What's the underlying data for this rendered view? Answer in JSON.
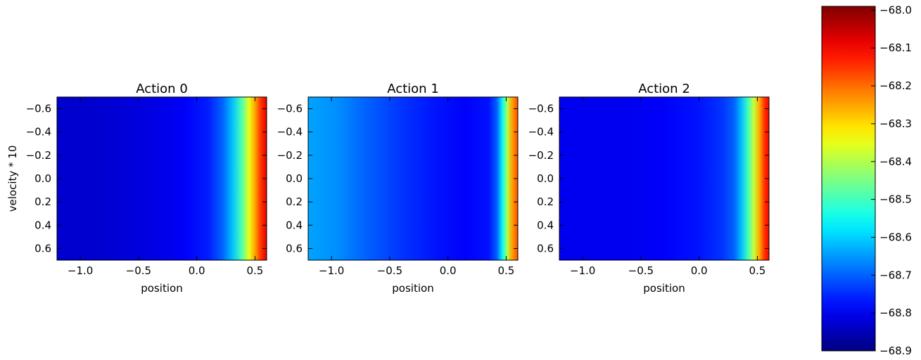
{
  "chart_data": {
    "type": "heatmap",
    "colormap": "jet",
    "ylabel": "velocity * 10",
    "colorbar": {
      "range": [
        -68.9,
        -67.99
      ],
      "ticks": [
        "−68.0",
        "−68.1",
        "−68.2",
        "−68.3",
        "−68.4",
        "−68.5",
        "−68.6",
        "−68.7",
        "−68.8",
        "−68.9"
      ],
      "tick_values": [
        -68.0,
        -68.1,
        -68.2,
        -68.3,
        -68.4,
        -68.5,
        -68.6,
        -68.7,
        -68.8,
        -68.9
      ]
    },
    "panels": [
      {
        "title": "Action 0",
        "xlabel": "position",
        "xlim": [
          -1.2,
          0.6
        ],
        "ylim": [
          -0.7,
          0.7
        ],
        "y_inverted": true,
        "xticks": [
          "−1.0",
          "−0.5",
          "0.0",
          "0.5"
        ],
        "xtick_values": [
          -1.0,
          -0.5,
          0.0,
          0.5
        ],
        "yticks": [
          "−0.6",
          "−0.4",
          "−0.2",
          "0.0",
          "0.2",
          "0.4",
          "0.6"
        ],
        "ytick_values": [
          -0.6,
          -0.4,
          -0.2,
          0.0,
          0.2,
          0.4,
          0.6
        ],
        "profile": {
          "position": [
            -1.2,
            -0.9,
            -0.6,
            -0.35,
            -0.1,
            0.1,
            0.22,
            0.3,
            0.38,
            0.45,
            0.5,
            0.55,
            0.6
          ],
          "value": [
            -68.83,
            -68.83,
            -68.82,
            -68.81,
            -68.79,
            -68.76,
            -68.7,
            -68.62,
            -68.5,
            -68.35,
            -68.25,
            -68.15,
            -68.08
          ]
        }
      },
      {
        "title": "Action 1",
        "xlabel": "position",
        "xlim": [
          -1.2,
          0.6
        ],
        "ylim": [
          -0.7,
          0.7
        ],
        "y_inverted": true,
        "xticks": [
          "−1.0",
          "−0.5",
          "0.0",
          "0.5"
        ],
        "xtick_values": [
          -1.0,
          -0.5,
          0.0,
          0.5
        ],
        "yticks": [
          "−0.6",
          "−0.4",
          "−0.2",
          "0.0",
          "0.2",
          "0.4",
          "0.6"
        ],
        "ytick_values": [
          -0.6,
          -0.4,
          -0.2,
          0.0,
          0.2,
          0.4,
          0.6
        ],
        "profile": {
          "position": [
            -1.2,
            -0.95,
            -0.7,
            -0.4,
            -0.1,
            0.15,
            0.35,
            0.42,
            0.47,
            0.51,
            0.55,
            0.6
          ],
          "value": [
            -68.64,
            -68.66,
            -68.7,
            -68.74,
            -68.77,
            -68.79,
            -68.77,
            -68.7,
            -68.55,
            -68.4,
            -68.25,
            -68.17
          ]
        }
      },
      {
        "title": "Action 2",
        "xlabel": "position",
        "xlim": [
          -1.2,
          0.6
        ],
        "ylim": [
          -0.7,
          0.7
        ],
        "y_inverted": true,
        "xticks": [
          "−1.0",
          "−0.5",
          "0.0",
          "0.5"
        ],
        "xtick_values": [
          -1.0,
          -0.5,
          0.0,
          0.5
        ],
        "yticks": [
          "−0.6",
          "−0.4",
          "−0.2",
          "0.0",
          "0.2",
          "0.4",
          "0.6"
        ],
        "ytick_values": [
          -0.6,
          -0.4,
          -0.2,
          0.0,
          0.2,
          0.4,
          0.6
        ],
        "profile": {
          "position": [
            -1.2,
            -0.9,
            -0.6,
            -0.3,
            0.0,
            0.2,
            0.3,
            0.36,
            0.42,
            0.47,
            0.52,
            0.56,
            0.6
          ],
          "value": [
            -68.8,
            -68.8,
            -68.8,
            -68.79,
            -68.77,
            -68.74,
            -68.7,
            -68.62,
            -68.5,
            -68.38,
            -68.25,
            -68.15,
            -68.1
          ]
        }
      }
    ]
  }
}
